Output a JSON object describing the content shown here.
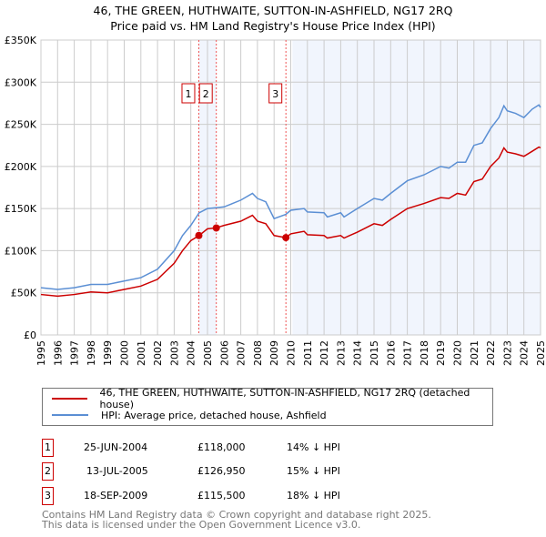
{
  "chart_data": {
    "type": "line",
    "title": "46, THE GREEN, HUTHWAITE, SUTTON-IN-ASHFIELD, NG17 2RQ",
    "subtitle": "Price paid vs. HM Land Registry's House Price Index (HPI)",
    "xlim": [
      1995,
      2025
    ],
    "ylim": [
      0,
      350000
    ],
    "x_ticks": [
      "1995",
      "1996",
      "1997",
      "1998",
      "1999",
      "2000",
      "2001",
      "2002",
      "2003",
      "2004",
      "2005",
      "2006",
      "2007",
      "2008",
      "2009",
      "2010",
      "2011",
      "2012",
      "2013",
      "2014",
      "2015",
      "2016",
      "2017",
      "2018",
      "2019",
      "2020",
      "2021",
      "2022",
      "2023",
      "2024",
      "2025"
    ],
    "y_ticks": [
      {
        "v": 0,
        "label": "£0"
      },
      {
        "v": 50000,
        "label": "£50K"
      },
      {
        "v": 100000,
        "label": "£100K"
      },
      {
        "v": 150000,
        "label": "£150K"
      },
      {
        "v": 200000,
        "label": "£200K"
      },
      {
        "v": 250000,
        "label": "£250K"
      },
      {
        "v": 300000,
        "label": "£300K"
      },
      {
        "v": 350000,
        "label": "£350K"
      }
    ],
    "grid": true,
    "series": [
      {
        "name": "46, THE GREEN, HUTHWAITE, SUTTON-IN-ASHFIELD, NG17 2RQ (detached house)",
        "color": "#cc0000",
        "x": [
          1995,
          1996,
          1997,
          1998,
          1999,
          2000,
          2001,
          2002,
          2003,
          2003.5,
          2004,
          2004.5,
          2005,
          2005.5,
          2006,
          2007,
          2007.7,
          2008,
          2008.5,
          2009,
          2009.7,
          2010,
          2010.8,
          2011,
          2012,
          2012.2,
          2013,
          2013.2,
          2014,
          2015,
          2015.5,
          2016,
          2017,
          2018,
          2019,
          2019.5,
          2020,
          2020.5,
          2021,
          2021.5,
          2022,
          2022.5,
          2022.8,
          2023,
          2023.5,
          2024,
          2024.5,
          2024.9,
          2025
        ],
        "y": [
          48000,
          46000,
          48000,
          51000,
          50000,
          54000,
          58000,
          66000,
          85000,
          100000,
          112000,
          118000,
          126000,
          127000,
          130000,
          135000,
          142000,
          135000,
          132000,
          118000,
          115500,
          120000,
          123000,
          119000,
          118000,
          115000,
          118000,
          115000,
          122000,
          132000,
          130000,
          137000,
          150000,
          156000,
          163000,
          162000,
          168000,
          166000,
          182000,
          185000,
          200000,
          210000,
          222000,
          217000,
          215000,
          212000,
          218000,
          223000,
          222000
        ]
      },
      {
        "name": "HPI: Average price, detached house, Ashfield",
        "color": "#5b8fd4",
        "x": [
          1995,
          1996,
          1997,
          1998,
          1999,
          2000,
          2001,
          2002,
          2003,
          2003.5,
          2004,
          2004.5,
          2005,
          2005.5,
          2006,
          2007,
          2007.7,
          2008,
          2008.5,
          2009,
          2009.7,
          2010,
          2010.8,
          2011,
          2012,
          2012.2,
          2013,
          2013.2,
          2014,
          2015,
          2015.5,
          2016,
          2017,
          2018,
          2019,
          2019.5,
          2020,
          2020.5,
          2021,
          2021.5,
          2022,
          2022.5,
          2022.8,
          2023,
          2023.5,
          2024,
          2024.5,
          2024.9,
          2025
        ],
        "y": [
          56000,
          54000,
          56000,
          60000,
          60000,
          64000,
          68000,
          78000,
          100000,
          118000,
          130000,
          145000,
          150000,
          151000,
          152000,
          160000,
          168000,
          162000,
          158000,
          138000,
          143000,
          148000,
          150000,
          146000,
          145000,
          140000,
          145000,
          140000,
          150000,
          162000,
          160000,
          168000,
          183000,
          190000,
          200000,
          198000,
          205000,
          205000,
          225000,
          228000,
          245000,
          258000,
          272000,
          266000,
          263000,
          258000,
          268000,
          273000,
          270000
        ]
      }
    ],
    "sales": [
      {
        "id": "1",
        "x": 2004.48,
        "date": "25-JUN-2004",
        "price": 118000,
        "price_label": "£118,000",
        "hpi_label": "14% ↓ HPI"
      },
      {
        "id": "2",
        "x": 2005.53,
        "date": "13-JUL-2005",
        "price": 126950,
        "price_label": "£126,950",
        "hpi_label": "15% ↓ HPI"
      },
      {
        "id": "3",
        "x": 2009.71,
        "date": "18-SEP-2009",
        "price": 115500,
        "price_label": "£115,500",
        "hpi_label": "18% ↓ HPI"
      }
    ],
    "shaded_from": 2010.1
  },
  "footer": {
    "line1": "Contains HM Land Registry data © Crown copyright and database right 2025.",
    "line2": "This data is licensed under the Open Government Licence v3.0."
  }
}
